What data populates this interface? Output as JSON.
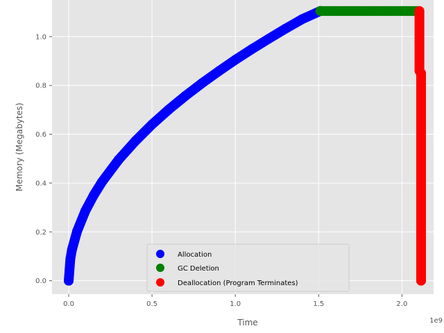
{
  "chart_data": {
    "type": "scatter",
    "xlabel": "Time",
    "ylabel": "Memory (Megabytes)",
    "x_offset_label": "1e9",
    "xlim": [
      -0.1,
      2.19
    ],
    "ylim": [
      -0.055,
      1.15
    ],
    "x_ticks": [
      0.0,
      0.5,
      1.0,
      1.5,
      2.0
    ],
    "x_tick_labels": [
      "0.0",
      "0.5",
      "1.0",
      "1.5",
      "2.0"
    ],
    "y_ticks": [
      0.0,
      0.2,
      0.4,
      0.6,
      0.8,
      1.0
    ],
    "y_tick_labels": [
      "0.0",
      "0.2",
      "0.4",
      "0.6",
      "0.8",
      "1.0"
    ],
    "grid": true,
    "legend_position": "lower center",
    "background": "#e5e5e5",
    "series": [
      {
        "name": "Allocation",
        "color": "#0000ff",
        "x": [
          0.0,
          0.01,
          0.02,
          0.05,
          0.1,
          0.15,
          0.2,
          0.3,
          0.4,
          0.5,
          0.6,
          0.7,
          0.8,
          0.9,
          1.0,
          1.1,
          1.2,
          1.3,
          1.4,
          1.51
        ],
        "y": [
          0.0,
          0.09,
          0.128,
          0.202,
          0.286,
          0.35,
          0.405,
          0.496,
          0.572,
          0.64,
          0.701,
          0.757,
          0.809,
          0.858,
          0.905,
          0.949,
          0.991,
          1.032,
          1.071,
          1.105
        ]
      },
      {
        "name": "GC Deletion",
        "color": "#008000",
        "x": [
          1.51,
          1.6,
          1.7,
          1.8,
          1.9,
          2.0,
          2.1
        ],
        "y": [
          1.105,
          1.105,
          1.105,
          1.105,
          1.105,
          1.105,
          1.105
        ]
      },
      {
        "name": "Deallocation (Program Terminates)",
        "color": "#ff0000",
        "x": [
          2.105,
          2.105,
          2.105,
          2.115,
          2.115,
          2.115,
          2.115,
          2.115,
          2.115
        ],
        "y": [
          1.105,
          0.98,
          0.86,
          0.85,
          0.68,
          0.5,
          0.32,
          0.15,
          0.0
        ]
      }
    ]
  }
}
